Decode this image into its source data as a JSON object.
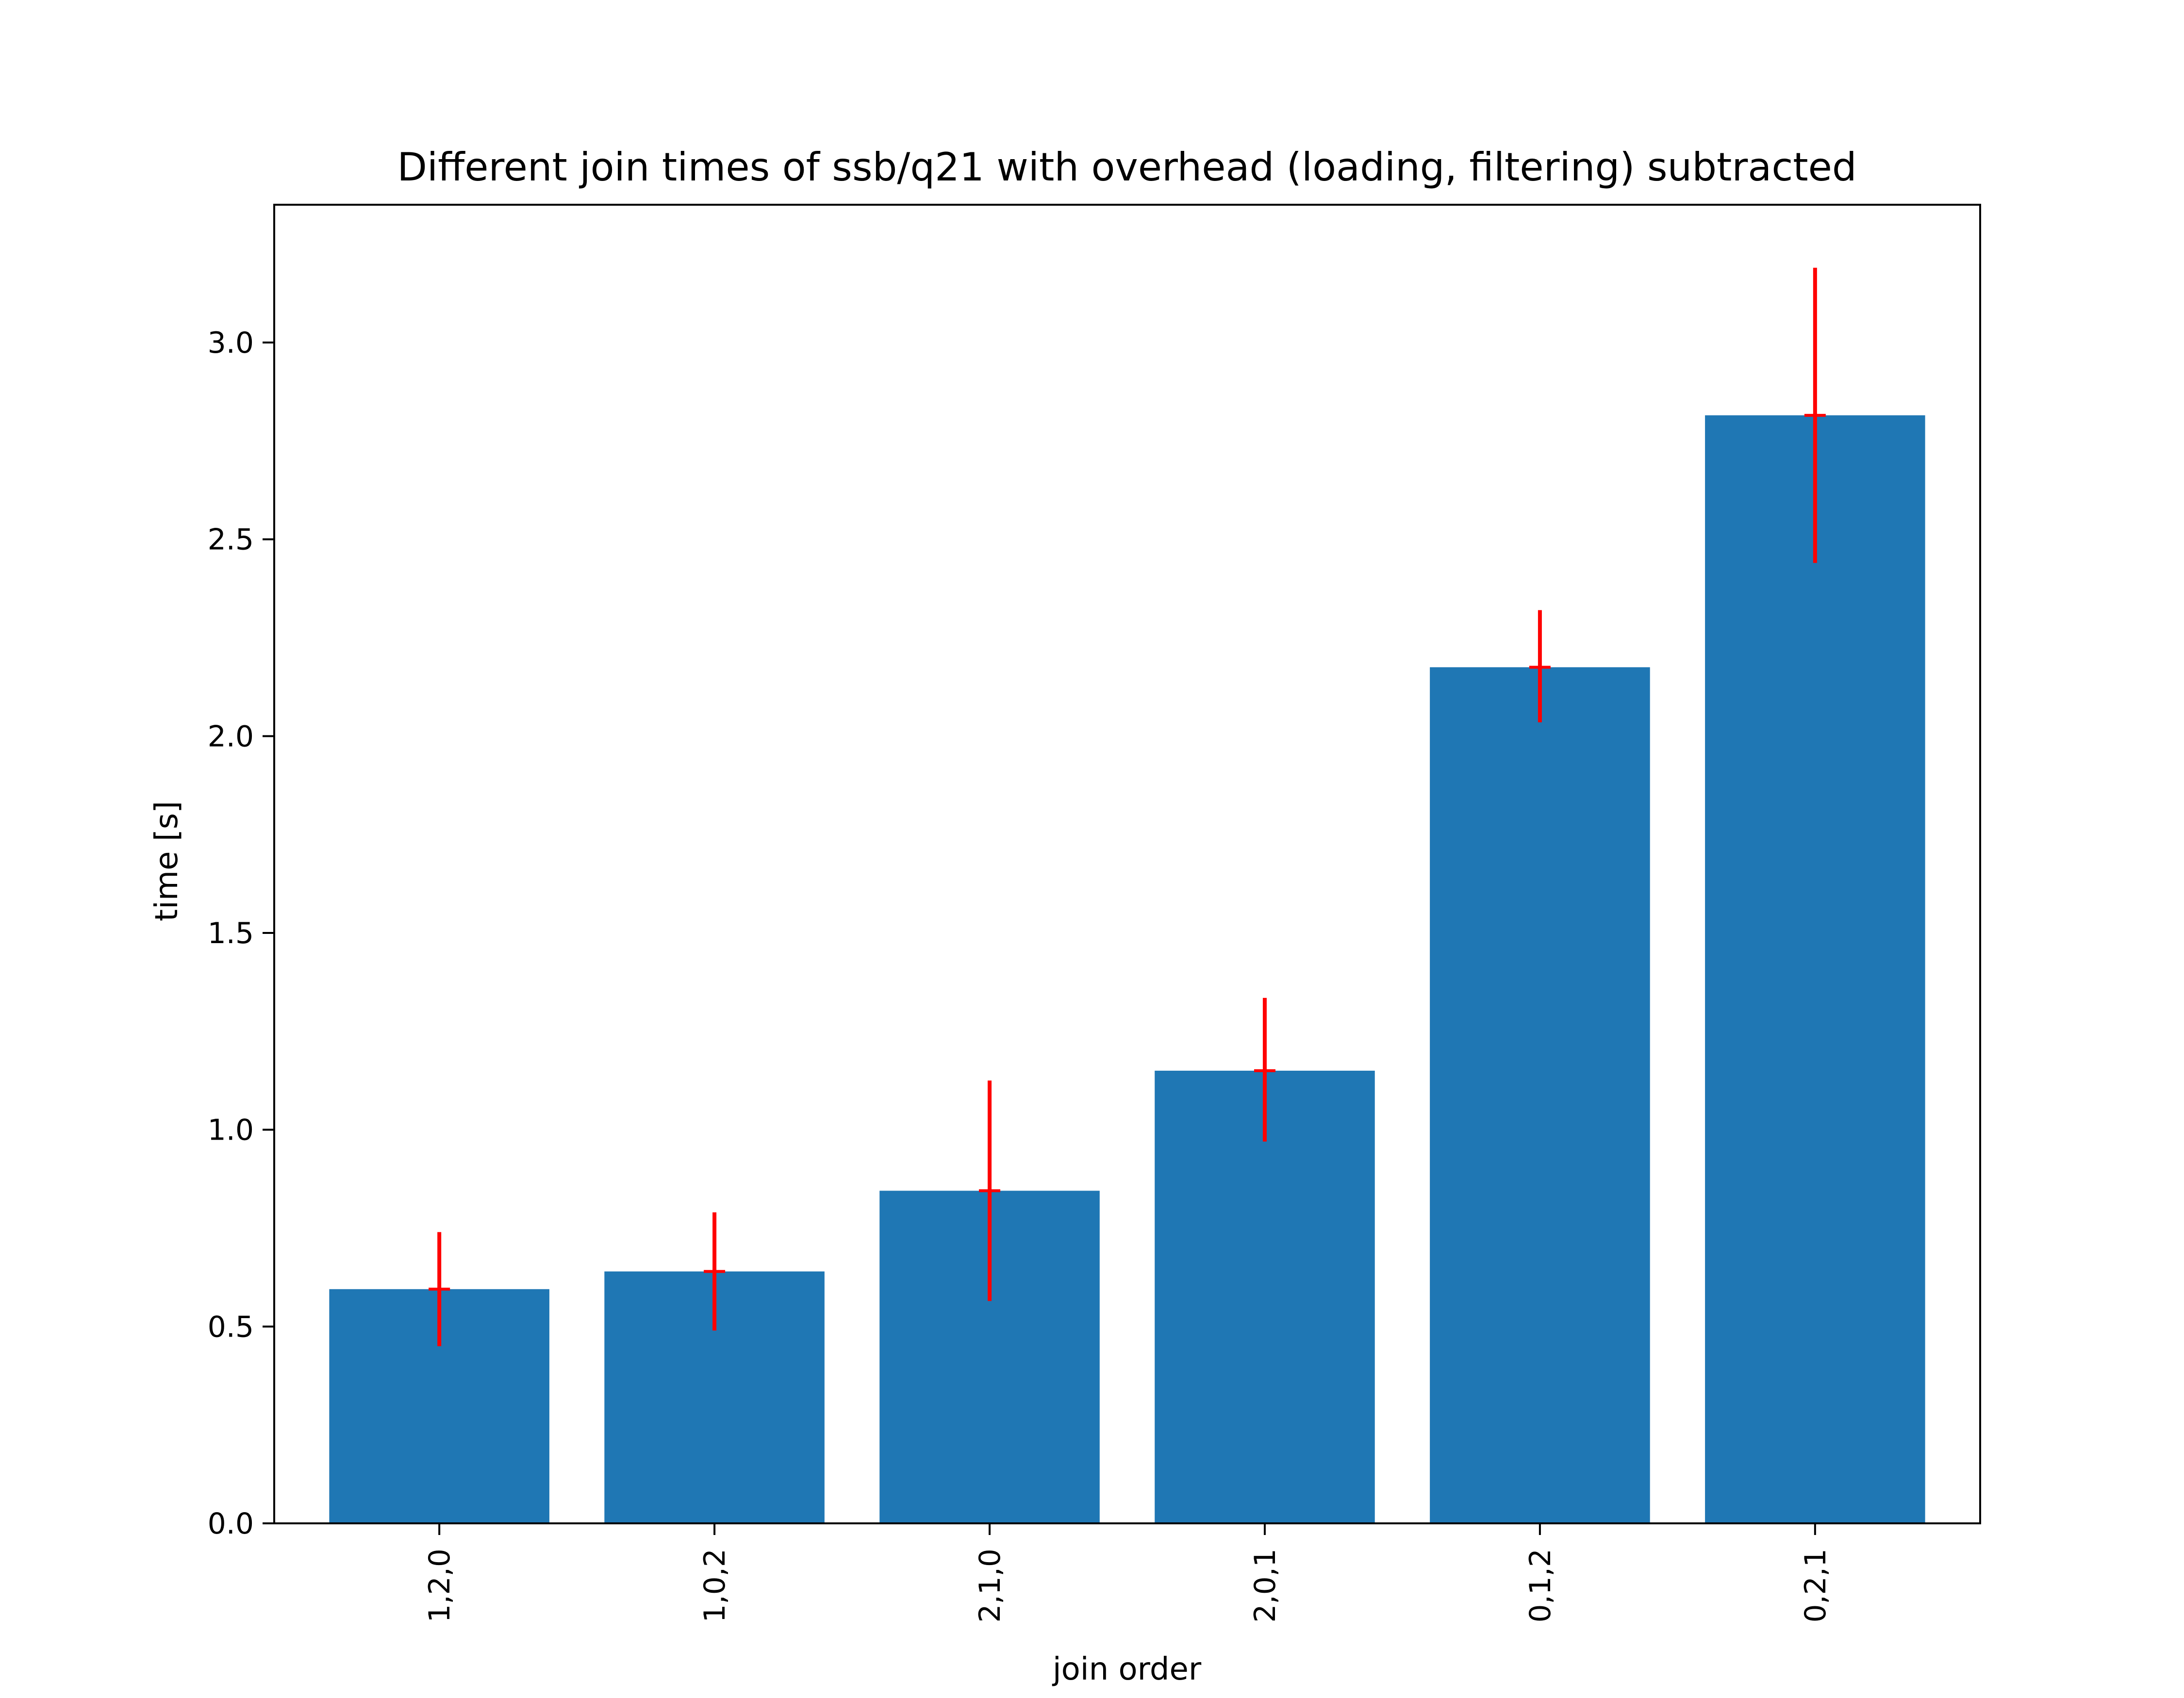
{
  "chart_data": {
    "type": "bar",
    "title": "Different join times of ssb/q21 with overhead (loading, filtering) subtracted",
    "xlabel": "join order",
    "ylabel": "time [s]",
    "categories": [
      "1,2,0",
      "1,0,2",
      "2,1,0",
      "2,0,1",
      "0,1,2",
      "0,2,1"
    ],
    "values": [
      0.595,
      0.64,
      0.845,
      1.15,
      2.175,
      2.815
    ],
    "error_low": [
      0.145,
      0.15,
      0.28,
      0.18,
      0.14,
      0.375
    ],
    "error_high": [
      0.145,
      0.15,
      0.28,
      0.185,
      0.145,
      0.375
    ],
    "ylim": [
      0,
      3.35
    ],
    "yticks": [
      0.0,
      0.5,
      1.0,
      1.5,
      2.0,
      2.5,
      3.0
    ],
    "ytick_labels": [
      "0.0",
      "0.5",
      "1.0",
      "1.5",
      "2.0",
      "2.5",
      "3.0"
    ],
    "grid": false,
    "colors": {
      "bar": "#1f77b4",
      "error": "#ff0000",
      "axis": "#000000"
    }
  }
}
